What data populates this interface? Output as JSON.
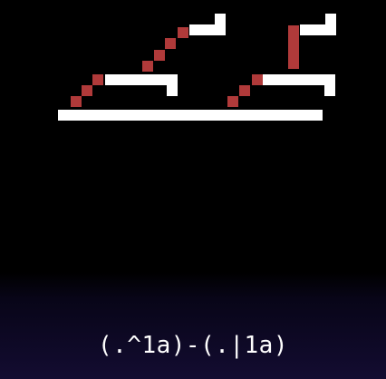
{
  "game": {
    "caption": "(.^1a)-(.|1a)"
  },
  "colors": {
    "background": "#000000",
    "platform": "#ffffff",
    "trail": "#b03a3a",
    "caption_text": "#ffffff",
    "footer_gradient": "#130c31"
  }
}
